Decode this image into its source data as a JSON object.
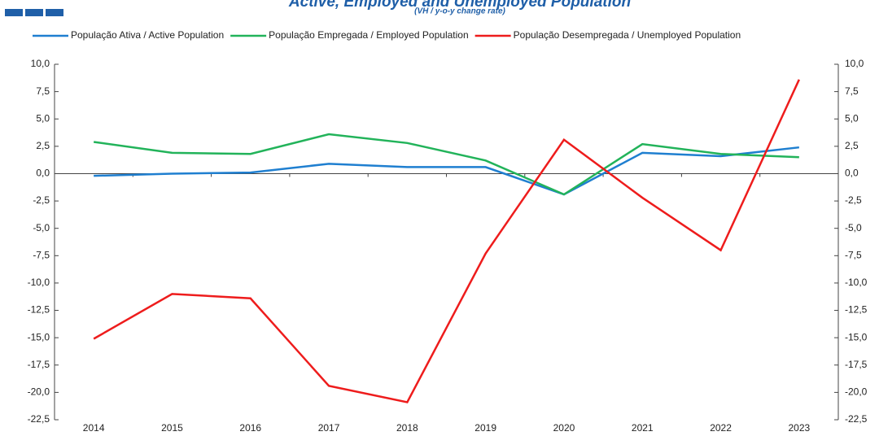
{
  "chart_data": {
    "type": "line",
    "title": "Active, Employed and Unemployed Population",
    "subtitle": "(VH / y-o-y change rate)",
    "categories": [
      "2014",
      "2015",
      "2016",
      "2017",
      "2018",
      "2019",
      "2020",
      "2021",
      "2022",
      "2023"
    ],
    "series": [
      {
        "name": "População Ativa / Active Population",
        "color": "#1f7fd0",
        "values": [
          -0.2,
          0.0,
          0.1,
          0.9,
          0.6,
          0.6,
          -1.9,
          1.9,
          1.6,
          2.4
        ]
      },
      {
        "name": "População Empregada /  Employed Population",
        "color": "#22b35a",
        "values": [
          2.9,
          1.9,
          1.8,
          3.6,
          2.8,
          1.2,
          -1.9,
          2.7,
          1.8,
          1.5
        ]
      },
      {
        "name": "População Desempregada / Unemployed Population",
        "color": "#ee1c1c",
        "values": [
          -15.1,
          -11.0,
          -11.4,
          -19.4,
          -20.9,
          -7.3,
          3.1,
          -2.2,
          -7.0,
          8.6
        ]
      }
    ],
    "ylim": [
      -22.5,
      10
    ],
    "yticks": [
      {
        "value": 10,
        "label": "10,0"
      },
      {
        "value": 7.5,
        "label": "7,5"
      },
      {
        "value": 5,
        "label": "5,0"
      },
      {
        "value": 2.5,
        "label": "2,5"
      },
      {
        "value": 0,
        "label": "0,0"
      },
      {
        "value": -2.5,
        "label": "-2,5"
      },
      {
        "value": -5,
        "label": "-5,0"
      },
      {
        "value": -7.5,
        "label": "-7,5"
      },
      {
        "value": -10,
        "label": "-10,0"
      },
      {
        "value": -12.5,
        "label": "-12,5"
      },
      {
        "value": -15,
        "label": "-15,0"
      },
      {
        "value": -17.5,
        "label": "-17,5"
      },
      {
        "value": -20,
        "label": "-20,0"
      },
      {
        "value": -22.5,
        "label": "-22,5"
      }
    ],
    "y2lim": [
      -22.5,
      10
    ],
    "y2ticks": [
      {
        "value": 10,
        "label": "10,0"
      },
      {
        "value": 7.5,
        "label": "7,5"
      },
      {
        "value": 5,
        "label": "5,0"
      },
      {
        "value": 2.5,
        "label": "2,5"
      },
      {
        "value": 0,
        "label": "0,0"
      },
      {
        "value": -2.5,
        "label": "-2,5"
      },
      {
        "value": -5,
        "label": "-5,0"
      },
      {
        "value": -7.5,
        "label": "-7,5"
      },
      {
        "value": -10,
        "label": "-10,0"
      },
      {
        "value": -12.5,
        "label": "-12,5"
      },
      {
        "value": -15,
        "label": "-15,0"
      },
      {
        "value": -17.5,
        "label": "-17,5"
      },
      {
        "value": -20,
        "label": "-20,0"
      },
      {
        "value": -22.5,
        "label": "-22,5"
      }
    ],
    "legend": "top",
    "grid": false
  }
}
